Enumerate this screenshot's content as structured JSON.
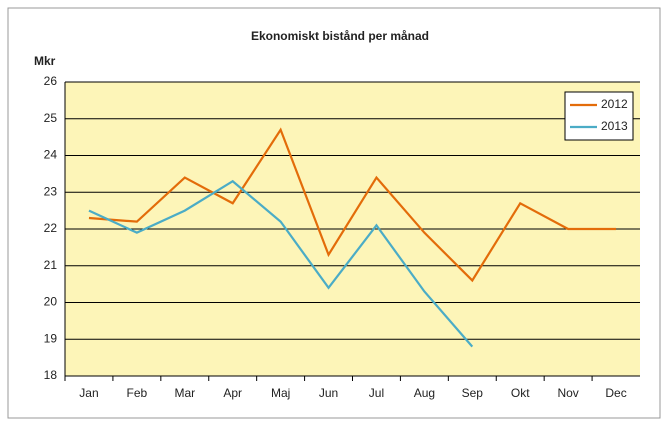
{
  "chart_data": {
    "type": "line",
    "title": "Ekonomiskt bistånd per månad",
    "y_label": "Mkr",
    "categories": [
      "Jan",
      "Feb",
      "Mar",
      "Apr",
      "Maj",
      "Jun",
      "Jul",
      "Aug",
      "Sep",
      "Okt",
      "Nov",
      "Dec"
    ],
    "series": [
      {
        "name": "2012",
        "color": "#e36c0a",
        "values": [
          22.3,
          22.2,
          23.4,
          22.7,
          24.7,
          21.3,
          23.4,
          21.9,
          20.6,
          22.7,
          22.0,
          22.0
        ]
      },
      {
        "name": "2013",
        "color": "#4bacc6",
        "values": [
          22.5,
          21.9,
          22.5,
          23.3,
          22.2,
          20.4,
          22.1,
          20.3,
          18.8,
          null,
          null,
          null
        ]
      }
    ],
    "ylim": [
      18,
      26
    ],
    "yticks": [
      18,
      19,
      20,
      21,
      22,
      23,
      24,
      25,
      26
    ],
    "grid": true,
    "legend": "upper right"
  }
}
